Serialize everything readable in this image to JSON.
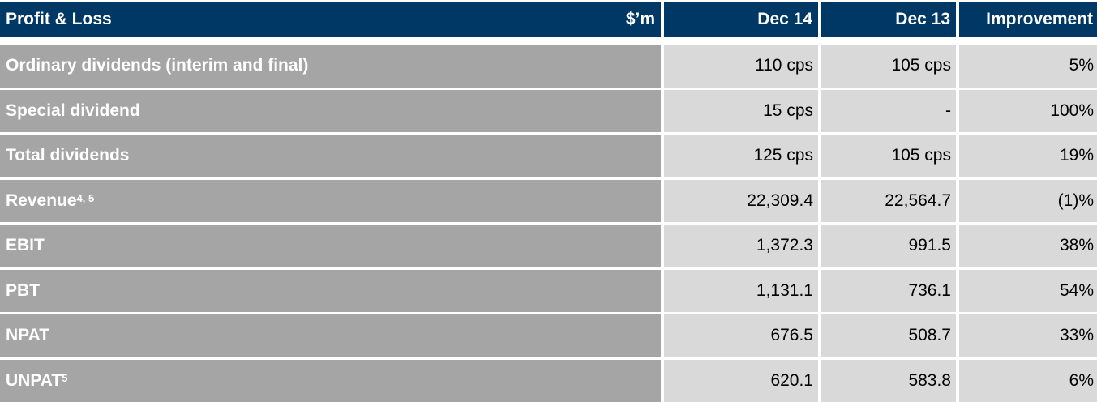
{
  "header": {
    "title": "Profit & Loss",
    "unit": "$’m",
    "columns": [
      "Dec 14",
      "Dec 13",
      "Improvement"
    ]
  },
  "rows": [
    {
      "label": "Ordinary dividends (interim and final)",
      "sup": "",
      "dec14": "110 cps",
      "dec13": "105 cps",
      "improvement": "5%"
    },
    {
      "label": "Special dividend",
      "sup": "",
      "dec14": "15 cps",
      "dec13": "-",
      "improvement": "100%"
    },
    {
      "label": "Total dividends",
      "sup": "",
      "dec14": "125 cps",
      "dec13": "105 cps",
      "improvement": "19%"
    },
    {
      "label": "Revenue",
      "sup": "4, 5",
      "dec14": "22,309.4",
      "dec13": "22,564.7",
      "improvement": "(1)%"
    },
    {
      "label": "EBIT",
      "sup": "",
      "dec14": "1,372.3",
      "dec13": "991.5",
      "improvement": "38%"
    },
    {
      "label": "PBT",
      "sup": "",
      "dec14": "1,131.1",
      "dec13": "736.1",
      "improvement": "54%"
    },
    {
      "label": "NPAT",
      "sup": "",
      "dec14": "676.5",
      "dec13": "508.7",
      "improvement": "33%"
    },
    {
      "label": "UNPAT",
      "sup": "5",
      "dec14": "620.1",
      "dec13": "583.8",
      "improvement": "6%"
    }
  ],
  "colors": {
    "header": "#003865",
    "label_cell": "#a5a5a5",
    "value_cell": "#d9d9d9"
  }
}
